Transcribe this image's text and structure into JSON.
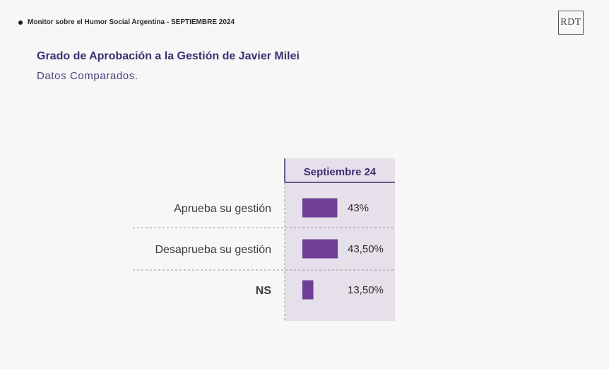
{
  "header": {
    "monitor_text": "Monitor sobre el Humor Social Argentina  - SEPTIEMBRE 2024",
    "logo_text": "RDT"
  },
  "chart_data": {
    "type": "bar",
    "orientation": "horizontal",
    "title": "Grado de Aprobación a la Gestión de Javier Milei",
    "subtitle": "Datos Comparados.",
    "categories": [
      "Aprueba su gestión",
      "Desaprueba su gestión",
      "NS"
    ],
    "series": [
      {
        "name": "Septiembre 24",
        "values": [
          43,
          43.5,
          13.5
        ],
        "labels": [
          "43%",
          "43,50%",
          "13,50%"
        ]
      }
    ],
    "xlim": [
      0,
      100
    ],
    "grid": false,
    "colors": {
      "bar": "#6f3f98",
      "column_bg": "#e6e0ea",
      "header_text": "#3d2f73",
      "divider": "#9a9a9a"
    }
  }
}
